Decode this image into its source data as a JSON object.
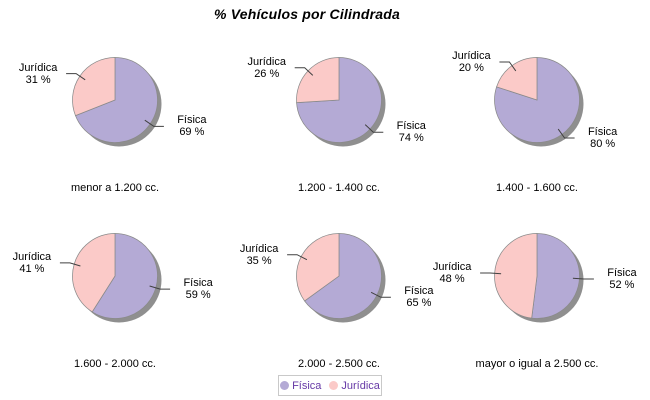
{
  "title": "% Vehículos por Cilindrada",
  "colors": {
    "fisica": "#B4AAD5",
    "juridica": "#FBCAC8",
    "shadow": "#8F8F8F",
    "slice_outline": "#8A8A8A",
    "callout_line": "#404040",
    "legend_border": "#C9C9C9",
    "legend_text": "#6639A6",
    "label_text": "#000000",
    "background": "#FFFFFF"
  },
  "legend": {
    "items": [
      {
        "label": "Física",
        "color": "#B4AAD5"
      },
      {
        "label": "Jurídica",
        "color": "#FBCAC8"
      }
    ]
  },
  "chart_data": [
    {
      "type": "pie",
      "category": "menor a 1.200 cc.",
      "slices": [
        {
          "label": "Física",
          "pct": 69,
          "pct_label": "69 %"
        },
        {
          "label": "Jurídica",
          "pct": 31,
          "pct_label": "31 %"
        }
      ]
    },
    {
      "type": "pie",
      "category": "1.200 - 1.400 cc.",
      "slices": [
        {
          "label": "Física",
          "pct": 74,
          "pct_label": "74 %"
        },
        {
          "label": "Jurídica",
          "pct": 26,
          "pct_label": "26 %"
        }
      ]
    },
    {
      "type": "pie",
      "category": "1.400 - 1.600 cc.",
      "slices": [
        {
          "label": "Física",
          "pct": 80,
          "pct_label": "80 %"
        },
        {
          "label": "Jurídica",
          "pct": 20,
          "pct_label": "20 %"
        }
      ]
    },
    {
      "type": "pie",
      "category": "1.600 - 2.000 cc.",
      "slices": [
        {
          "label": "Física",
          "pct": 59,
          "pct_label": "59 %"
        },
        {
          "label": "Jurídica",
          "pct": 41,
          "pct_label": "41 %"
        }
      ]
    },
    {
      "type": "pie",
      "category": "2.000 - 2.500 cc.",
      "slices": [
        {
          "label": "Física",
          "pct": 65,
          "pct_label": "65 %"
        },
        {
          "label": "Jurídica",
          "pct": 35,
          "pct_label": "35 %"
        }
      ]
    },
    {
      "type": "pie",
      "category": "mayor o igual a 2.500 cc.",
      "slices": [
        {
          "label": "Física",
          "pct": 52,
          "pct_label": "52 %"
        },
        {
          "label": "Jurídica",
          "pct": 48,
          "pct_label": "48 %"
        }
      ]
    }
  ]
}
